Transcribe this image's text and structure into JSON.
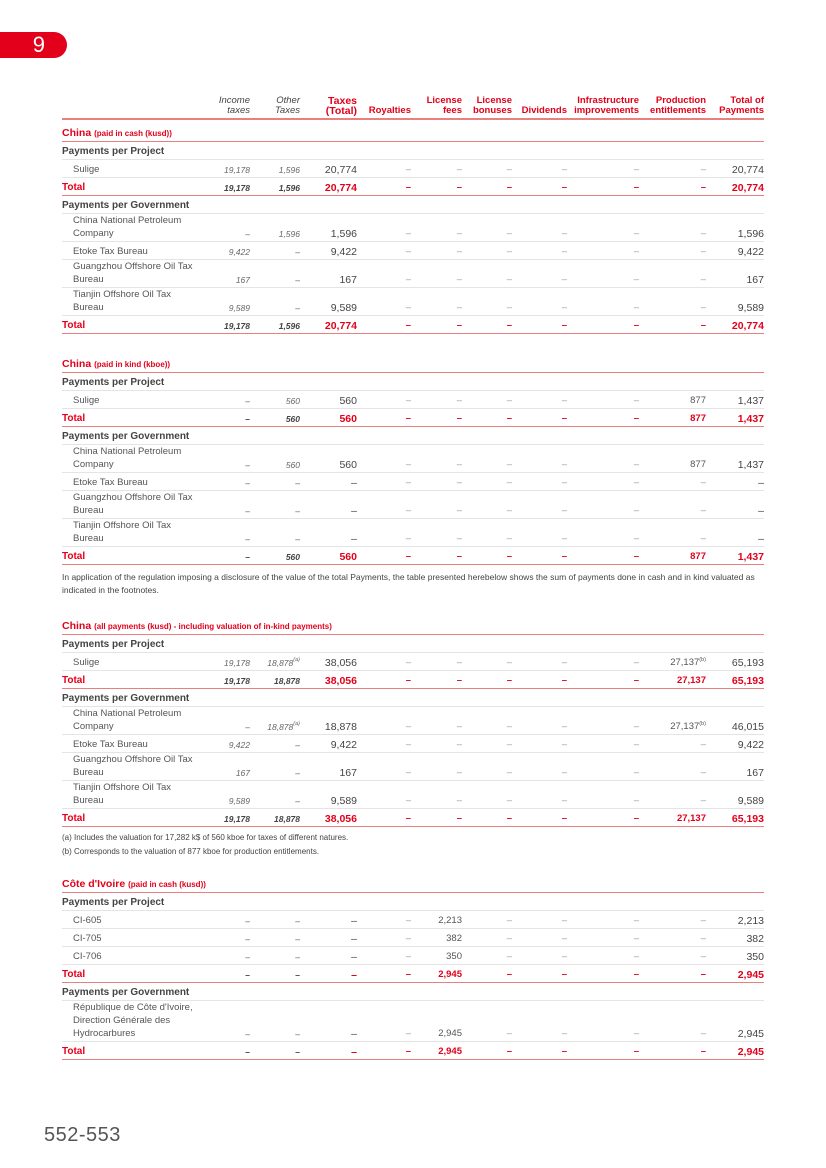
{
  "chapter_number": "9",
  "page_number": "552-553",
  "colors": {
    "accent": "#e2001a",
    "rule": "#e98080"
  },
  "columns": [
    "Income taxes",
    "Other Taxes",
    "Taxes (Total)",
    "Royalties",
    "License fees",
    "License bonuses",
    "Dividends",
    "Infrastructure improvements",
    "Production entitlements",
    "Total of Payments"
  ],
  "blocks": [
    {
      "type": "section",
      "title": "China",
      "subtitle": "(paid in cash (kusd))",
      "rows": [
        {
          "k": "gh",
          "label": "Payments per Project"
        },
        {
          "k": "item",
          "label": "Sulige",
          "v": [
            "19,178",
            "1,596",
            "20,774",
            "–",
            "–",
            "–",
            "–",
            "–",
            "–",
            "20,774"
          ]
        },
        {
          "k": "tot",
          "label": "Total",
          "v": [
            "19,178",
            "1,596",
            "20,774",
            "–",
            "–",
            "–",
            "–",
            "–",
            "–",
            "20,774"
          ]
        },
        {
          "k": "gh",
          "label": "Payments per Government"
        },
        {
          "k": "item",
          "label": "China National Petroleum Company",
          "v": [
            "–",
            "1,596",
            "1,596",
            "–",
            "–",
            "–",
            "–",
            "–",
            "–",
            "1,596"
          ]
        },
        {
          "k": "item",
          "label": "Etoke Tax Bureau",
          "v": [
            "9,422",
            "–",
            "9,422",
            "–",
            "–",
            "–",
            "–",
            "–",
            "–",
            "9,422"
          ]
        },
        {
          "k": "item",
          "label": "Guangzhou Offshore Oil Tax Bureau",
          "v": [
            "167",
            "–",
            "167",
            "–",
            "–",
            "–",
            "–",
            "–",
            "–",
            "167"
          ]
        },
        {
          "k": "item",
          "label": "Tianjin Offshore Oil Tax Bureau",
          "v": [
            "9,589",
            "–",
            "9,589",
            "–",
            "–",
            "–",
            "–",
            "–",
            "–",
            "9,589"
          ]
        },
        {
          "k": "tot",
          "label": "Total",
          "v": [
            "19,178",
            "1,596",
            "20,774",
            "–",
            "–",
            "–",
            "–",
            "–",
            "–",
            "20,774"
          ]
        }
      ]
    },
    {
      "type": "section",
      "title": "China",
      "subtitle": "(paid in kind (kboe))",
      "rows": [
        {
          "k": "gh",
          "label": "Payments per Project"
        },
        {
          "k": "item",
          "label": "Sulige",
          "v": [
            "–",
            "560",
            "560",
            "–",
            "–",
            "–",
            "–",
            "–",
            "877",
            "1,437"
          ]
        },
        {
          "k": "tot",
          "label": "Total",
          "v": [
            "–",
            "560",
            "560",
            "–",
            "–",
            "–",
            "–",
            "–",
            "877",
            "1,437"
          ]
        },
        {
          "k": "gh",
          "label": "Payments per Government"
        },
        {
          "k": "item",
          "label": "China National Petroleum Company",
          "v": [
            "–",
            "560",
            "560",
            "–",
            "–",
            "–",
            "–",
            "–",
            "877",
            "1,437"
          ]
        },
        {
          "k": "item",
          "label": "Etoke Tax Bureau",
          "v": [
            "–",
            "–",
            "–",
            "–",
            "–",
            "–",
            "–",
            "–",
            "–",
            "–"
          ]
        },
        {
          "k": "item",
          "label": "Guangzhou Offshore Oil Tax Bureau",
          "v": [
            "–",
            "–",
            "–",
            "–",
            "–",
            "–",
            "–",
            "–",
            "–",
            "–"
          ]
        },
        {
          "k": "item",
          "label": "Tianjin Offshore Oil Tax Bureau",
          "v": [
            "–",
            "–",
            "–",
            "–",
            "–",
            "–",
            "–",
            "–",
            "–",
            "–"
          ]
        },
        {
          "k": "tot",
          "label": "Total",
          "v": [
            "–",
            "560",
            "560",
            "–",
            "–",
            "–",
            "–",
            "–",
            "877",
            "1,437"
          ]
        }
      ]
    },
    {
      "type": "note",
      "text": "In application of the regulation imposing a disclosure of the value of the total Payments, the table presented herebelow shows the sum of payments done in cash and in kind valuated as indicated in the footnotes."
    },
    {
      "type": "section",
      "title": "China",
      "subtitle": "(all payments (kusd) - including valuation of in-kind payments)",
      "rows": [
        {
          "k": "gh",
          "label": "Payments per Project"
        },
        {
          "k": "item",
          "label": "Sulige",
          "v": [
            "19,178",
            "18,878",
            "38,056",
            "–",
            "–",
            "–",
            "–",
            "–",
            "27,137",
            "65,193"
          ],
          "sup": {
            "1": "(a)",
            "8": "(b)"
          }
        },
        {
          "k": "tot",
          "label": "Total",
          "v": [
            "19,178",
            "18,878",
            "38,056",
            "–",
            "–",
            "–",
            "–",
            "–",
            "27,137",
            "65,193"
          ]
        },
        {
          "k": "gh",
          "label": "Payments per Government"
        },
        {
          "k": "item",
          "label": "China National Petroleum Company",
          "v": [
            "–",
            "18,878",
            "18,878",
            "–",
            "–",
            "–",
            "–",
            "–",
            "27,137",
            "46,015"
          ],
          "sup": {
            "1": "(a)",
            "8": "(b)"
          }
        },
        {
          "k": "item",
          "label": "Etoke Tax Bureau",
          "v": [
            "9,422",
            "–",
            "9,422",
            "–",
            "–",
            "–",
            "–",
            "–",
            "–",
            "9,422"
          ]
        },
        {
          "k": "item",
          "label": "Guangzhou Offshore Oil Tax Bureau",
          "v": [
            "167",
            "–",
            "167",
            "–",
            "–",
            "–",
            "–",
            "–",
            "–",
            "167"
          ]
        },
        {
          "k": "item",
          "label": "Tianjin Offshore Oil Tax Bureau",
          "v": [
            "9,589",
            "–",
            "9,589",
            "–",
            "–",
            "–",
            "–",
            "–",
            "–",
            "9,589"
          ]
        },
        {
          "k": "tot",
          "label": "Total",
          "v": [
            "19,178",
            "18,878",
            "38,056",
            "–",
            "–",
            "–",
            "–",
            "–",
            "27,137",
            "65,193"
          ]
        }
      ]
    },
    {
      "type": "footnotes",
      "items": [
        "(a) Includes the valuation for 17,282 k$ of 560 kboe for taxes of different natures.",
        "(b) Corresponds to the valuation of 877 kboe for production entitlements."
      ]
    },
    {
      "type": "section",
      "title": "Côte d'Ivoire",
      "subtitle": "(paid in cash (kusd))",
      "rows": [
        {
          "k": "gh",
          "label": "Payments per Project"
        },
        {
          "k": "item",
          "label": "CI-605",
          "v": [
            "–",
            "–",
            "–",
            "–",
            "2,213",
            "–",
            "–",
            "–",
            "–",
            "2,213"
          ]
        },
        {
          "k": "item",
          "label": "CI-705",
          "v": [
            "–",
            "–",
            "–",
            "–",
            "382",
            "–",
            "–",
            "–",
            "–",
            "382"
          ]
        },
        {
          "k": "item",
          "label": "CI-706",
          "v": [
            "–",
            "–",
            "–",
            "–",
            "350",
            "–",
            "–",
            "–",
            "–",
            "350"
          ]
        },
        {
          "k": "tot",
          "label": "Total",
          "v": [
            "–",
            "–",
            "–",
            "–",
            "2,945",
            "–",
            "–",
            "–",
            "–",
            "2,945"
          ]
        },
        {
          "k": "gh",
          "label": "Payments per Government"
        },
        {
          "k": "item",
          "label": "République de Côte d'Ivoire, Direction Générale des Hydrocarbures",
          "v": [
            "–",
            "–",
            "–",
            "–",
            "2,945",
            "–",
            "–",
            "–",
            "–",
            "2,945"
          ]
        },
        {
          "k": "tot",
          "label": "Total",
          "v": [
            "–",
            "–",
            "–",
            "–",
            "2,945",
            "–",
            "–",
            "–",
            "–",
            "2,945"
          ]
        }
      ]
    }
  ]
}
